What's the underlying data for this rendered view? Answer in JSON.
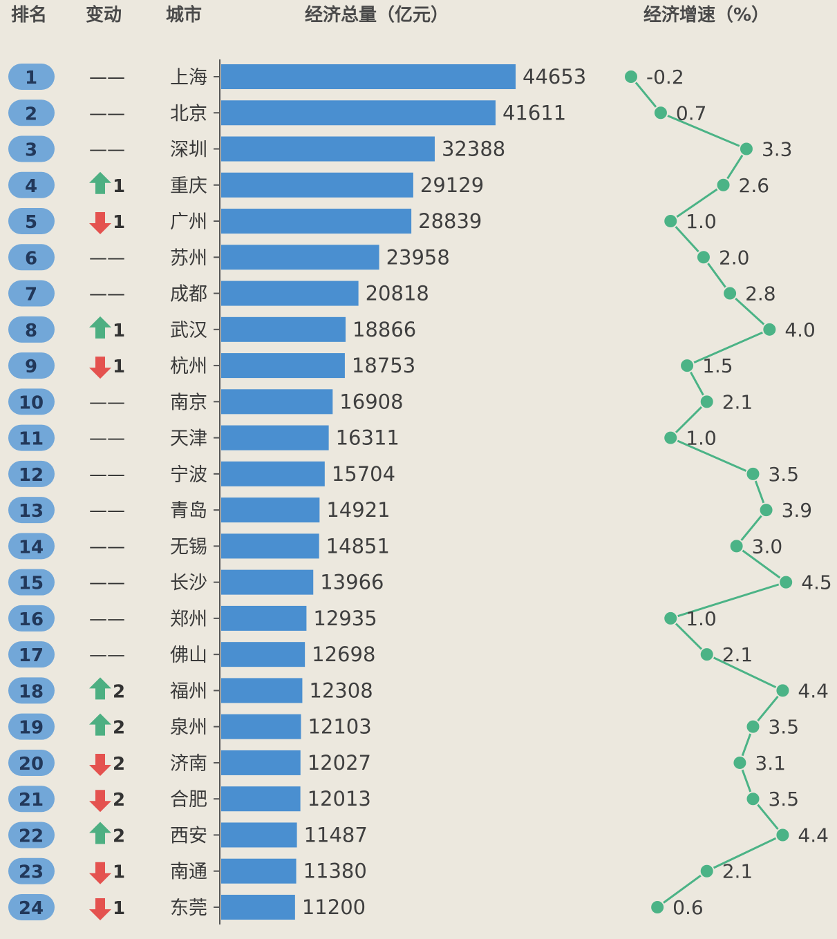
{
  "chart_data": {
    "type": "bar",
    "headers": {
      "rank": "排名",
      "change": "变动",
      "city": "城市",
      "gdp": "经济总量（亿元）",
      "growth": "经济增速（%）"
    },
    "categories": [
      "上海",
      "北京",
      "深圳",
      "重庆",
      "广州",
      "苏州",
      "成都",
      "武汉",
      "杭州",
      "南京",
      "天津",
      "宁波",
      "青岛",
      "无锡",
      "长沙",
      "郑州",
      "佛山",
      "福州",
      "泉州",
      "济南",
      "合肥",
      "西安",
      "南通",
      "东莞"
    ],
    "ranks": [
      1,
      2,
      3,
      4,
      5,
      6,
      7,
      8,
      9,
      10,
      11,
      12,
      13,
      14,
      15,
      16,
      17,
      18,
      19,
      20,
      21,
      22,
      23,
      24
    ],
    "rank_change": [
      0,
      0,
      0,
      1,
      -1,
      0,
      0,
      1,
      -1,
      0,
      0,
      0,
      0,
      0,
      0,
      0,
      0,
      2,
      2,
      -2,
      -2,
      2,
      -1,
      -1
    ],
    "series": [
      {
        "name": "经济总量（亿元）",
        "type": "bar",
        "values": [
          44653,
          41611,
          32388,
          29129,
          28839,
          23958,
          20818,
          18866,
          18753,
          16908,
          16311,
          15704,
          14921,
          14851,
          13966,
          12935,
          12698,
          12308,
          12103,
          12027,
          12013,
          11487,
          11380,
          11200
        ]
      },
      {
        "name": "经济增速（%）",
        "type": "line",
        "values": [
          -0.2,
          0.7,
          3.3,
          2.6,
          1.0,
          2.0,
          2.8,
          4.0,
          1.5,
          2.1,
          1.0,
          3.5,
          3.9,
          3.0,
          4.5,
          1.0,
          2.1,
          4.4,
          3.5,
          3.1,
          3.5,
          4.4,
          2.1,
          0.6
        ]
      }
    ],
    "no_change_symbol": "——",
    "colors": {
      "background": "#ece8de",
      "bar": "#4a8fd0",
      "rank_badge": "#72a7d8",
      "growth_line": "#4bb386",
      "up_arrow": "#4daf82",
      "down_arrow": "#e4524f"
    }
  }
}
